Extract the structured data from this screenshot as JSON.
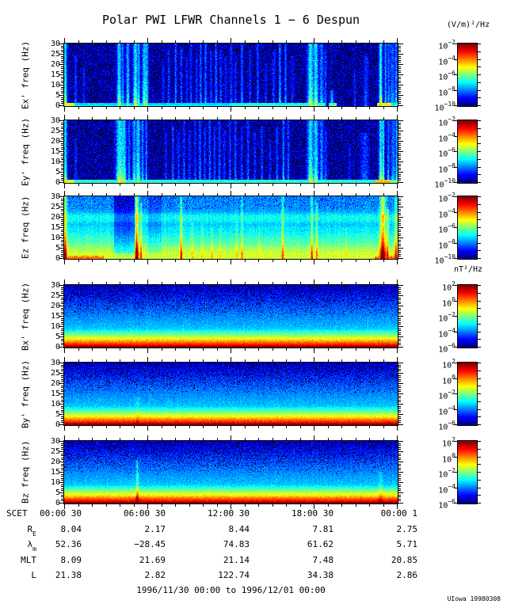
{
  "title": "Polar PWI LFWR Channels 1 − 6 Despun",
  "footer": "1996/11/30 00:00 to 1996/12/01 00:00",
  "credit": "UIowa 19980308",
  "chart_data": {
    "type": "heatmap",
    "subtype": "spectrogram",
    "time_range": {
      "start": "1996/11/30 00:00",
      "end": "1996/12/01 00:00",
      "hours": 24
    },
    "x_axis": {
      "label": "SCET",
      "major_tick_interval_hours": 6,
      "minor_tick_interval_hours": 1
    },
    "y_axis": {
      "range": [
        0,
        30
      ],
      "tick_labels": [
        "30",
        "25",
        "20",
        "15",
        "10",
        "5",
        "0"
      ],
      "unit": "Hz"
    },
    "colorbars": {
      "e": {
        "unit": "(V/m)²/Hz",
        "tick_exponents": [
          "−2",
          "−4",
          "−6",
          "−8",
          "−10"
        ],
        "log_range": [
          -2,
          -10
        ]
      },
      "b": {
        "unit": "nT²/Hz",
        "tick_exponents": [
          "2",
          "0",
          "−2",
          "−4",
          "−6"
        ],
        "log_range": [
          2,
          -6
        ]
      }
    },
    "panels": [
      {
        "id": "ex",
        "ylabel": "Ex' freq (Hz)",
        "kind": "e",
        "colorbar": "e",
        "events": [
          [
            0.05,
            1.5,
            0.55,
            1
          ],
          [
            0.8,
            1,
            0.16,
            0.8
          ],
          [
            1.4,
            1,
            0.1,
            0.6
          ],
          [
            3.93,
            2,
            0.5,
            1
          ],
          [
            4.2,
            1,
            0.28,
            1
          ],
          [
            4.55,
            1.5,
            0.42,
            1
          ],
          [
            5.1,
            2,
            0.55,
            1
          ],
          [
            5.35,
            1,
            0.38,
            1
          ],
          [
            5.75,
            2,
            0.48,
            1
          ],
          [
            5.95,
            1,
            0.3,
            1
          ],
          [
            7.1,
            1,
            0.14,
            0.7
          ],
          [
            7.5,
            1,
            0.18,
            0.9
          ],
          [
            8.0,
            1,
            0.24,
            1
          ],
          [
            8.4,
            1,
            0.18,
            0.9
          ],
          [
            8.8,
            1,
            0.14,
            0.8
          ],
          [
            9.1,
            1,
            0.2,
            1
          ],
          [
            9.5,
            1,
            0.16,
            0.85
          ],
          [
            9.8,
            1,
            0.24,
            1
          ],
          [
            10.15,
            1,
            0.28,
            1
          ],
          [
            10.55,
            1,
            0.18,
            0.9
          ],
          [
            10.9,
            1,
            0.26,
            1
          ],
          [
            11.25,
            1,
            0.18,
            0.9
          ],
          [
            11.6,
            1,
            0.14,
            0.8
          ],
          [
            12.0,
            1,
            0.18,
            1
          ],
          [
            12.3,
            1,
            0.14,
            0.8
          ],
          [
            12.77,
            1,
            0.26,
            1
          ],
          [
            13.35,
            1,
            0.14,
            0.9
          ],
          [
            13.9,
            1,
            0.2,
            1
          ],
          [
            14.5,
            1,
            0.11,
            0.7
          ],
          [
            15.05,
            1,
            0.18,
            0.9
          ],
          [
            15.5,
            1,
            0.32,
            1
          ],
          [
            15.9,
            1,
            0.26,
            1
          ],
          [
            16.4,
            1,
            0.13,
            0.8
          ],
          [
            17.7,
            2.5,
            0.55,
            1
          ],
          [
            18.1,
            2,
            0.5,
            1
          ],
          [
            18.5,
            1.5,
            0.34,
            1
          ],
          [
            18.78,
            1,
            0.22,
            0.9
          ],
          [
            19.25,
            1.5,
            0.28,
            0.25
          ],
          [
            20.9,
            1,
            0.12,
            0.6
          ],
          [
            21.7,
            2,
            0.16,
            0.8
          ],
          [
            22.75,
            1.5,
            0.6,
            1
          ],
          [
            23.1,
            1,
            0.34,
            1
          ],
          [
            23.32,
            1,
            0.28,
            1
          ],
          [
            23.6,
            2,
            0.28,
            1
          ],
          [
            23.87,
            1,
            0.34,
            1
          ]
        ],
        "bottom_band": [
          [
            0,
            0.7,
            0.55
          ],
          [
            0.7,
            12,
            0.32
          ],
          [
            12,
            18.8,
            0.38
          ],
          [
            19.0,
            19.6,
            0.45
          ],
          [
            22.5,
            23.5,
            0.6
          ],
          [
            23.5,
            24,
            0.35
          ]
        ]
      },
      {
        "id": "ey",
        "ylabel": "Ey' freq (Hz)",
        "kind": "e",
        "colorbar": "e",
        "events": [
          [
            0.05,
            1.5,
            0.55,
            1
          ],
          [
            0.8,
            1,
            0.13,
            0.7
          ],
          [
            3.95,
            3,
            0.55,
            1
          ],
          [
            4.3,
            2,
            0.42,
            1
          ],
          [
            4.65,
            1,
            0.3,
            1
          ],
          [
            5.0,
            1.5,
            0.38,
            1
          ],
          [
            5.3,
            2,
            0.5,
            1
          ],
          [
            5.62,
            1,
            0.34,
            1
          ],
          [
            5.88,
            1,
            0.3,
            1
          ],
          [
            7.3,
            1,
            0.15,
            0.8
          ],
          [
            7.8,
            1,
            0.2,
            0.9
          ],
          [
            8.2,
            1,
            0.16,
            0.8
          ],
          [
            8.6,
            1,
            0.22,
            1
          ],
          [
            9.0,
            1,
            0.16,
            0.85
          ],
          [
            9.4,
            1,
            0.2,
            1
          ],
          [
            9.75,
            1,
            0.26,
            1
          ],
          [
            10.1,
            1,
            0.2,
            0.9
          ],
          [
            10.45,
            1,
            0.24,
            1
          ],
          [
            10.8,
            1,
            0.18,
            0.9
          ],
          [
            11.15,
            1,
            0.22,
            1
          ],
          [
            11.5,
            1,
            0.16,
            0.85
          ],
          [
            11.9,
            1,
            0.2,
            1
          ],
          [
            12.3,
            1,
            0.24,
            1
          ],
          [
            12.75,
            1,
            0.18,
            0.9
          ],
          [
            13.2,
            1,
            0.22,
            1
          ],
          [
            13.7,
            1,
            0.14,
            0.8
          ],
          [
            14.2,
            1,
            0.18,
            0.9
          ],
          [
            14.8,
            1,
            0.12,
            0.7
          ],
          [
            15.3,
            1,
            0.2,
            0.9
          ],
          [
            15.75,
            1,
            0.3,
            1
          ],
          [
            16.1,
            1,
            0.22,
            1
          ],
          [
            17.7,
            2.5,
            0.55,
            1
          ],
          [
            18.1,
            2,
            0.48,
            1
          ],
          [
            18.5,
            1.5,
            0.32,
            1
          ],
          [
            18.8,
            1,
            0.2,
            0.9
          ],
          [
            20.5,
            1,
            0.12,
            0.6
          ],
          [
            21.6,
            3,
            0.18,
            0.8
          ],
          [
            22.75,
            1.5,
            0.55,
            1
          ],
          [
            22.95,
            1,
            0.5,
            1
          ],
          [
            23.3,
            1,
            0.3,
            1
          ],
          [
            23.65,
            2,
            0.3,
            1
          ],
          [
            23.9,
            1,
            0.38,
            1
          ]
        ],
        "bottom_band": [
          [
            0,
            0.7,
            0.55
          ],
          [
            0.7,
            22.4,
            0.38
          ],
          [
            22.4,
            23.4,
            0.65
          ],
          [
            23.4,
            24,
            0.45
          ]
        ]
      },
      {
        "id": "ez",
        "ylabel": "Ez freq (Hz)",
        "kind": "ez",
        "colorbar": "e",
        "events": [
          [
            0.05,
            1.5,
            0.5,
            1
          ],
          [
            5.2,
            1.5,
            0.55,
            1
          ],
          [
            5.5,
            1,
            0.3,
            0.9
          ],
          [
            8.4,
            1,
            0.38,
            1
          ],
          [
            9.2,
            1,
            0.13,
            0.6
          ],
          [
            9.9,
            1,
            0.11,
            0.6
          ],
          [
            10.6,
            1,
            0.13,
            0.5
          ],
          [
            11.2,
            1,
            0.1,
            0.5
          ],
          [
            12.4,
            1,
            0.1,
            0.6
          ],
          [
            12.77,
            1,
            0.22,
            1
          ],
          [
            14.0,
            1,
            0.08,
            0.5
          ],
          [
            15.7,
            1,
            0.28,
            1
          ],
          [
            17.8,
            1,
            0.32,
            1
          ],
          [
            18.15,
            1,
            0.22,
            0.9
          ],
          [
            20.3,
            1,
            0.1,
            0.5
          ],
          [
            22.9,
            2.5,
            0.58,
            1
          ],
          [
            23.25,
            1,
            0.28,
            0.8
          ],
          [
            23.85,
            1.5,
            0.33,
            1
          ]
        ],
        "bands": [
          {
            "f": 2.5,
            "s": 0.1,
            "w": 1.2
          },
          {
            "f": 5,
            "s": 0.09,
            "w": 1
          },
          {
            "f": 7,
            "s": 0.07,
            "w": 1
          },
          {
            "f": 9.5,
            "s": 0.08,
            "w": 1.2
          },
          {
            "f": 12,
            "s": 0.05,
            "w": 1
          },
          {
            "f": 14.5,
            "s": 0.05,
            "w": 1
          },
          {
            "f": 19,
            "s": 0.09,
            "w": 1.5
          },
          {
            "f": 21,
            "s": 0.05,
            "w": 1
          }
        ],
        "dim_regions": [
          [
            3.55,
            5.05,
            0.15
          ],
          [
            6.0,
            7.0,
            0.06
          ]
        ],
        "bottom_band": [
          [
            0,
            2.8,
            0.72
          ],
          [
            2.8,
            22.3,
            0.52
          ],
          [
            22.3,
            24,
            0.72
          ]
        ]
      },
      {
        "id": "bx",
        "ylabel": "Bx' freq (Hz)",
        "kind": "b",
        "colorbar": "b",
        "events": []
      },
      {
        "id": "by",
        "ylabel": "By' freq (Hz)",
        "kind": "b",
        "colorbar": "b",
        "events": [
          [
            5.24,
            1.2,
            0.09,
            0.45
          ]
        ]
      },
      {
        "id": "bz",
        "ylabel": "Bz freq (Hz)",
        "kind": "b",
        "colorbar": "b",
        "events": [
          [
            5.24,
            1.2,
            0.26,
            0.7
          ],
          [
            22.75,
            1.5,
            0.11,
            0.55
          ]
        ]
      }
    ]
  },
  "ephemeris": {
    "scet_label": "SCET",
    "scet_values": [
      "00:00 30",
      "06:00 30",
      "12:00 30",
      "18:00 30",
      "00:00  1"
    ],
    "rows": [
      {
        "label": "R",
        "sub": "E",
        "values": [
          "8.04",
          "2.17",
          "8.44",
          "7.81",
          "2.75"
        ]
      },
      {
        "label": "λ",
        "sub": "m",
        "values": [
          "52.36",
          "−28.45",
          "74.83",
          "61.62",
          "5.71"
        ]
      },
      {
        "label": "MLT",
        "sub": "",
        "values": [
          "8.09",
          "21.69",
          "21.14",
          "7.48",
          "20.85"
        ]
      },
      {
        "label": "L",
        "sub": "",
        "values": [
          "21.38",
          "2.82",
          "122.74",
          "34.38",
          "2.86"
        ]
      }
    ]
  }
}
